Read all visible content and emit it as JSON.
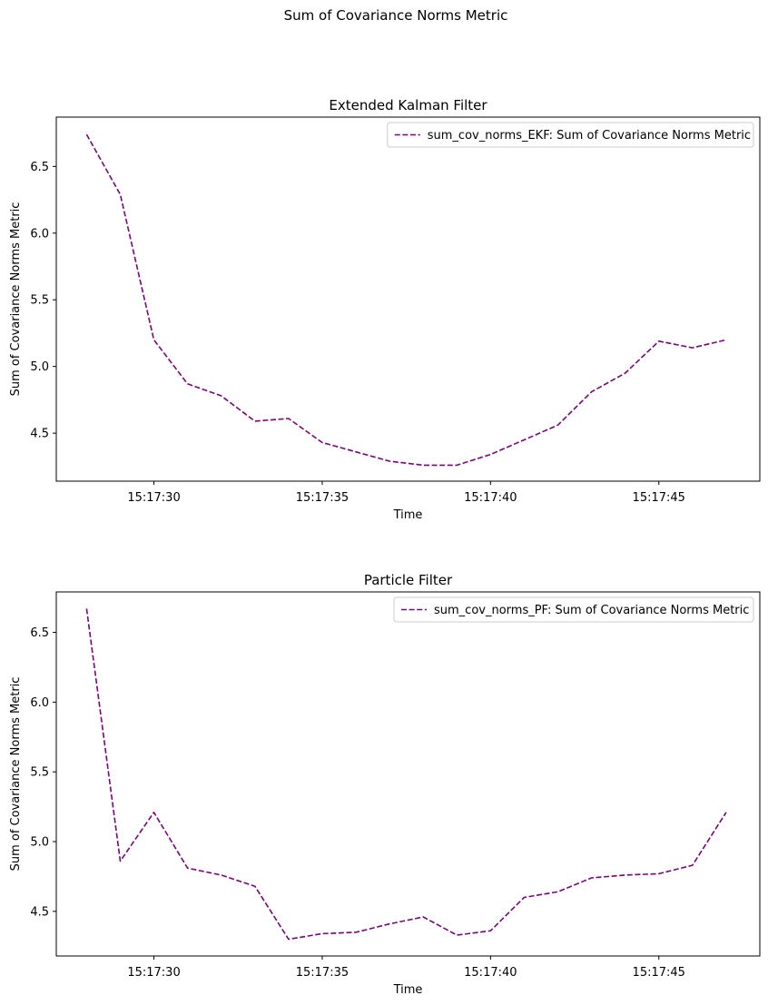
{
  "suptitle": "Sum of Covariance Norms Metric",
  "chart_data": [
    {
      "type": "line",
      "title": "Extended Kalman Filter",
      "xlabel": "Time",
      "ylabel": "Sum of Covariance Norms Metric",
      "x": [
        "15:17:28",
        "15:17:29",
        "15:17:30",
        "15:17:31",
        "15:17:32",
        "15:17:33",
        "15:17:34",
        "15:17:35",
        "15:17:36",
        "15:17:37",
        "15:17:38",
        "15:17:39",
        "15:17:40",
        "15:17:41",
        "15:17:42",
        "15:17:43",
        "15:17:44",
        "15:17:45",
        "15:17:46",
        "15:17:47"
      ],
      "xticks": [
        "15:17:30",
        "15:17:35",
        "15:17:40",
        "15:17:45"
      ],
      "yticks": [
        4.5,
        5.0,
        5.5,
        6.0,
        6.5
      ],
      "ylim": [
        4.14,
        6.87
      ],
      "xlim": [
        "15:17:27.1",
        "15:17:48.0"
      ],
      "legend": "upper right",
      "series": [
        {
          "name": "sum_cov_norms_EKF: Sum of Covariance Norms Metric",
          "color": "#800080",
          "linestyle": "dashed",
          "values": [
            6.74,
            6.29,
            5.2,
            4.87,
            4.78,
            4.59,
            4.61,
            4.43,
            4.36,
            4.29,
            4.26,
            4.26,
            4.34,
            4.45,
            4.56,
            4.81,
            4.95,
            5.19,
            5.14,
            5.2
          ]
        }
      ]
    },
    {
      "type": "line",
      "title": "Particle Filter",
      "xlabel": "Time",
      "ylabel": "Sum of Covariance Norms Metric",
      "x": [
        "15:17:28",
        "15:17:29",
        "15:17:30",
        "15:17:31",
        "15:17:32",
        "15:17:33",
        "15:17:34",
        "15:17:35",
        "15:17:36",
        "15:17:37",
        "15:17:38",
        "15:17:39",
        "15:17:40",
        "15:17:41",
        "15:17:42",
        "15:17:43",
        "15:17:44",
        "15:17:45",
        "15:17:46",
        "15:17:47"
      ],
      "xticks": [
        "15:17:30",
        "15:17:35",
        "15:17:40",
        "15:17:45"
      ],
      "yticks": [
        4.5,
        5.0,
        5.5,
        6.0,
        6.5
      ],
      "ylim": [
        4.18,
        6.79
      ],
      "xlim": [
        "15:17:27.1",
        "15:17:48.0"
      ],
      "legend": "upper right",
      "series": [
        {
          "name": "sum_cov_norms_PF: Sum of Covariance Norms Metric",
          "color": "#800080",
          "linestyle": "dashed",
          "values": [
            6.67,
            4.86,
            5.21,
            4.81,
            4.76,
            4.68,
            4.3,
            4.34,
            4.35,
            4.41,
            4.46,
            4.33,
            4.36,
            4.6,
            4.64,
            4.74,
            4.76,
            4.77,
            4.83,
            5.21
          ]
        }
      ]
    }
  ]
}
